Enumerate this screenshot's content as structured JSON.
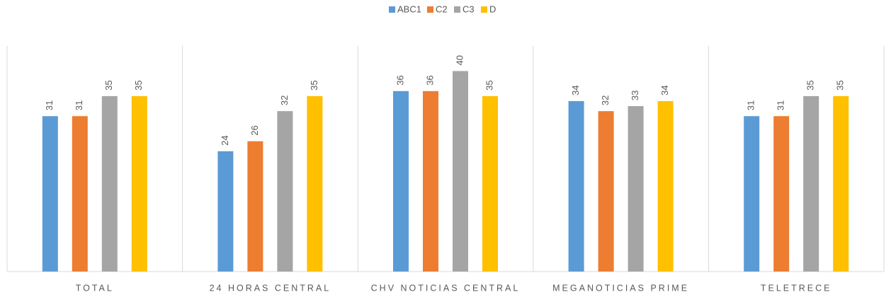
{
  "chart_data": {
    "type": "bar",
    "categories": [
      "TOTAL",
      "24 HORAS CENTRAL",
      "CHV NOTICIAS CENTRAL",
      "MEGANOTICIAS PRIME",
      "TELETRECE"
    ],
    "series": [
      {
        "name": "ABC1",
        "color": "#5b9bd5",
        "values": [
          31,
          24,
          36,
          34,
          31
        ]
      },
      {
        "name": "C2",
        "color": "#ed7d31",
        "values": [
          31,
          26,
          36,
          32,
          31
        ]
      },
      {
        "name": "C3",
        "color": "#a5a5a5",
        "values": [
          35,
          32,
          40,
          33,
          35
        ]
      },
      {
        "name": "D",
        "color": "#ffc000",
        "values": [
          35,
          35,
          35,
          34,
          35
        ]
      }
    ],
    "ylim": [
      0,
      45
    ],
    "legend": "top",
    "data_labels": true
  }
}
